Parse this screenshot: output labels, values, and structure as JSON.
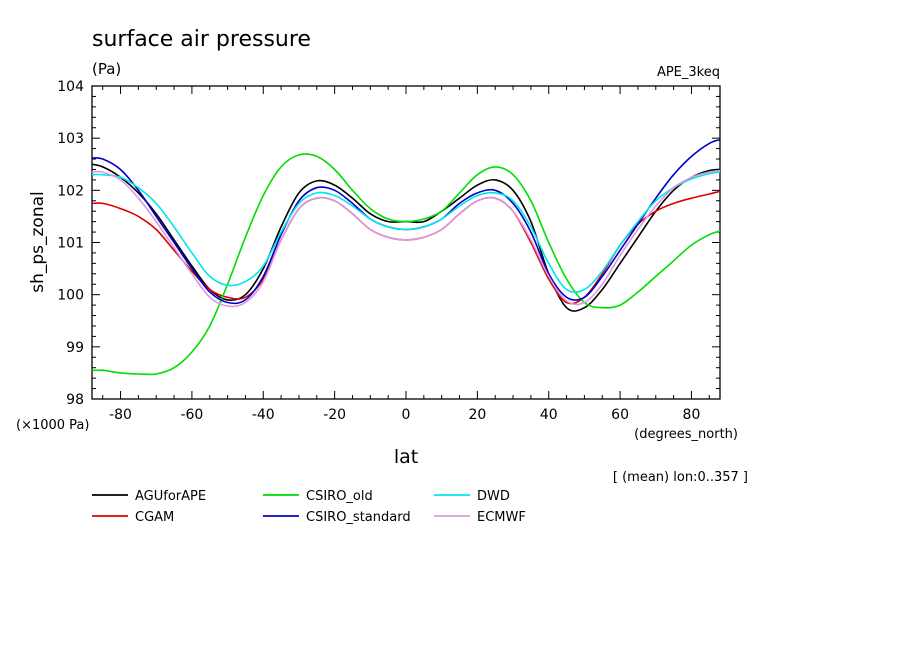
{
  "chart_data": {
    "type": "line",
    "title": "surface air pressure",
    "subtitle": "(Pa)",
    "experiment": "APE_3keq",
    "xlabel": "lat",
    "x_units": "(degrees_north)",
    "ylabel": "sh_ps_zonal",
    "y_units": "(×1000 Pa)",
    "note": "[ (mean) lon:0..357 ]",
    "xlim": [
      -88,
      88
    ],
    "ylim": [
      98,
      104
    ],
    "x_ticks": [
      -80,
      -60,
      -40,
      -20,
      0,
      20,
      40,
      60,
      80
    ],
    "x_tick_labels": [
      "-80",
      "-60",
      "-40",
      "-20",
      "0",
      "20",
      "40",
      "60",
      "80"
    ],
    "y_ticks": [
      98,
      99,
      100,
      101,
      102,
      103,
      104
    ],
    "y_tick_labels": [
      "98",
      "99",
      "100",
      "101",
      "102",
      "103",
      "104"
    ],
    "grid": false,
    "legend_placement": "bottom",
    "x": [
      -88,
      -85,
      -80,
      -75,
      -70,
      -65,
      -60,
      -55,
      -50,
      -45,
      -40,
      -35,
      -30,
      -25,
      -20,
      -15,
      -10,
      -5,
      0,
      5,
      10,
      15,
      20,
      25,
      30,
      35,
      40,
      45,
      50,
      55,
      60,
      65,
      70,
      75,
      80,
      85,
      88
    ],
    "series": [
      {
        "name": "AGUforAPE",
        "color": "#000000",
        "values": [
          102.5,
          102.45,
          102.25,
          101.95,
          101.55,
          101.05,
          100.55,
          100.1,
          99.9,
          100.0,
          100.5,
          101.3,
          101.95,
          102.18,
          102.1,
          101.85,
          101.55,
          101.4,
          101.4,
          101.4,
          101.6,
          101.85,
          102.1,
          102.2,
          102.0,
          101.4,
          100.4,
          99.75,
          99.75,
          100.1,
          100.6,
          101.1,
          101.6,
          102.0,
          102.25,
          102.38,
          102.4
        ]
      },
      {
        "name": "CGAM",
        "color": "#dd0000",
        "values": [
          101.75,
          101.75,
          101.65,
          101.5,
          101.25,
          100.85,
          100.45,
          100.1,
          99.95,
          99.95,
          100.3,
          101.05,
          101.65,
          101.85,
          101.8,
          101.55,
          101.25,
          101.1,
          101.05,
          101.1,
          101.25,
          101.55,
          101.8,
          101.85,
          101.6,
          101.0,
          100.3,
          99.85,
          99.95,
          100.4,
          100.95,
          101.35,
          101.6,
          101.75,
          101.85,
          101.93,
          101.98
        ]
      },
      {
        "name": "CSIRO_old",
        "color": "#00dd00",
        "values": [
          98.55,
          98.55,
          98.5,
          98.48,
          98.48,
          98.6,
          98.9,
          99.4,
          100.2,
          101.1,
          101.9,
          102.45,
          102.68,
          102.65,
          102.4,
          102.0,
          101.65,
          101.45,
          101.4,
          101.45,
          101.6,
          101.95,
          102.3,
          102.45,
          102.3,
          101.8,
          101.0,
          100.3,
          99.85,
          99.75,
          99.8,
          100.05,
          100.35,
          100.65,
          100.95,
          101.15,
          101.22
        ]
      },
      {
        "name": "CSIRO_standard",
        "color": "#0000cc",
        "values": [
          102.62,
          102.6,
          102.4,
          102.0,
          101.5,
          101.0,
          100.5,
          100.05,
          99.85,
          99.9,
          100.35,
          101.15,
          101.8,
          102.05,
          102.0,
          101.75,
          101.45,
          101.3,
          101.25,
          101.3,
          101.45,
          101.75,
          101.95,
          102.0,
          101.75,
          101.2,
          100.4,
          99.95,
          99.95,
          100.35,
          100.85,
          101.35,
          101.85,
          102.3,
          102.65,
          102.9,
          102.97
        ]
      },
      {
        "name": "DWD",
        "color": "#00e5ee",
        "values": [
          102.3,
          102.3,
          102.25,
          102.05,
          101.75,
          101.3,
          100.8,
          100.35,
          100.18,
          100.25,
          100.55,
          101.2,
          101.75,
          101.95,
          101.9,
          101.7,
          101.45,
          101.3,
          101.25,
          101.3,
          101.45,
          101.7,
          101.9,
          101.95,
          101.8,
          101.3,
          100.6,
          100.1,
          100.1,
          100.45,
          100.95,
          101.4,
          101.8,
          102.05,
          102.22,
          102.32,
          102.35
        ]
      },
      {
        "name": "ECMWF",
        "color": "#dd99dd",
        "values": [
          102.35,
          102.35,
          102.2,
          101.85,
          101.4,
          100.9,
          100.4,
          99.95,
          99.78,
          99.85,
          100.25,
          101.05,
          101.65,
          101.85,
          101.8,
          101.55,
          101.25,
          101.1,
          101.05,
          101.1,
          101.25,
          101.55,
          101.8,
          101.85,
          101.6,
          101.05,
          100.35,
          99.88,
          99.85,
          100.2,
          100.75,
          101.25,
          101.7,
          102.05,
          102.25,
          102.35,
          102.38
        ]
      }
    ]
  }
}
